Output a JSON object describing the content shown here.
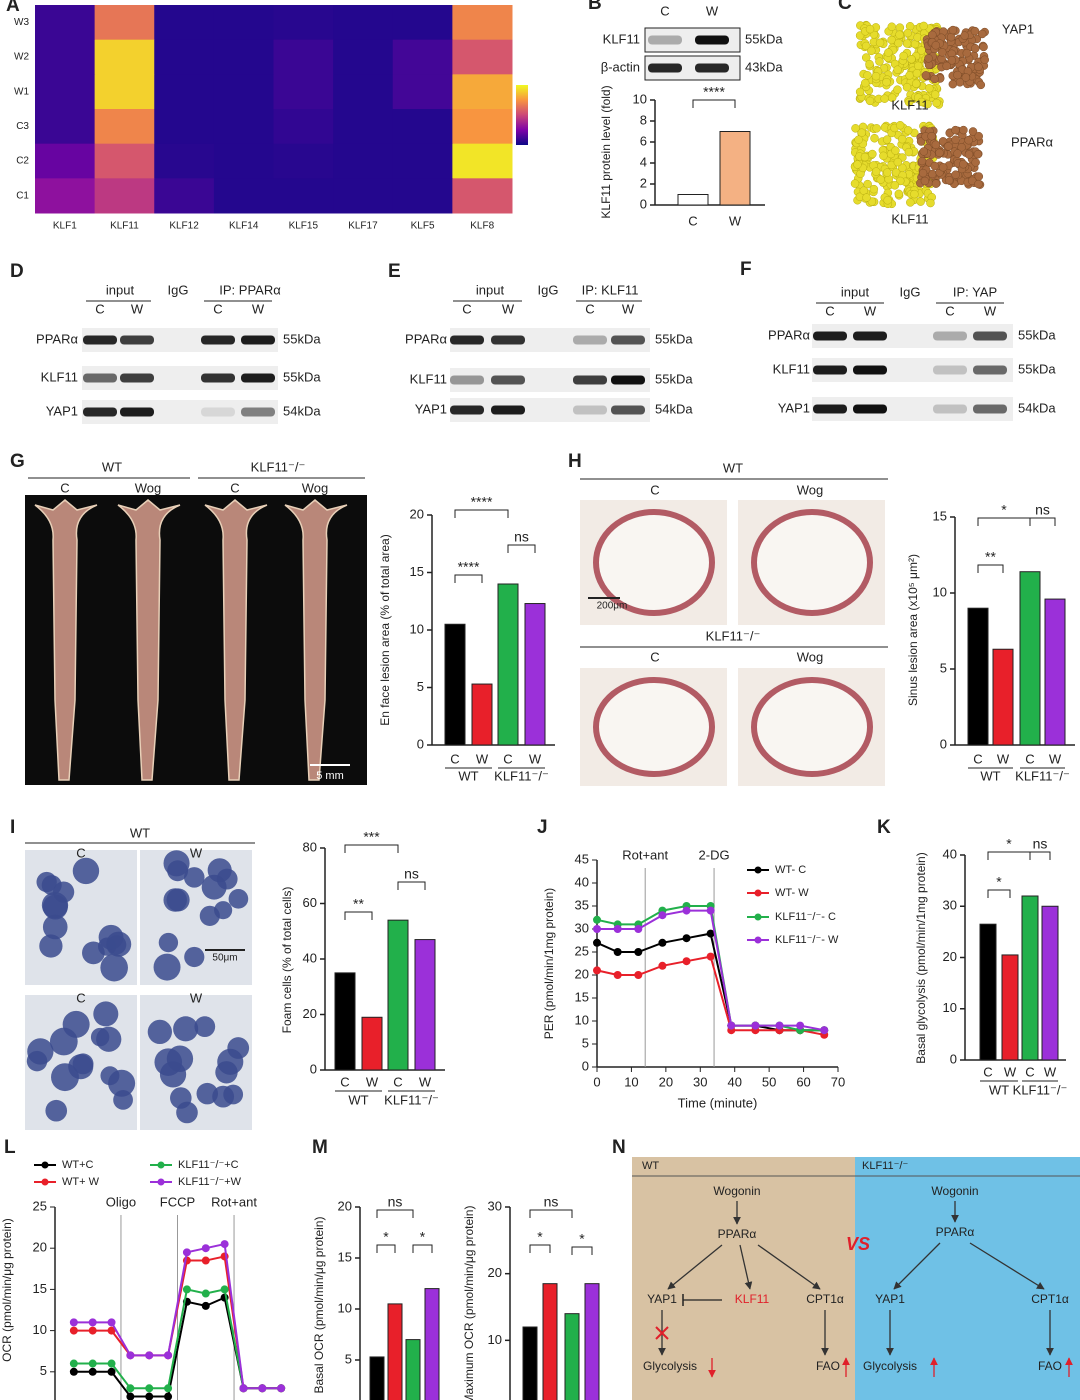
{
  "panel_labels": [
    "A",
    "B",
    "C",
    "D",
    "E",
    "F",
    "G",
    "H",
    "I",
    "J",
    "K",
    "L",
    "M",
    "N"
  ],
  "chart_data": [
    {
      "type": "heatmap",
      "rows": [
        "W3",
        "W2",
        "W1",
        "C3",
        "C2",
        "C1"
      ],
      "columns": [
        "KLF1",
        "KLF11",
        "KLF12",
        "KLF14",
        "KLF15",
        "KLF17",
        "KLF5",
        "KLF8"
      ],
      "values": [
        [
          0.1,
          0.65,
          0.05,
          0.05,
          0.06,
          0.05,
          0.05,
          0.7
        ],
        [
          0.1,
          0.9,
          0.05,
          0.05,
          0.1,
          0.05,
          0.12,
          0.55
        ],
        [
          0.1,
          0.9,
          0.05,
          0.05,
          0.1,
          0.05,
          0.12,
          0.8
        ],
        [
          0.1,
          0.7,
          0.05,
          0.05,
          0.08,
          0.05,
          0.05,
          0.75
        ],
        [
          0.2,
          0.55,
          0.06,
          0.05,
          0.06,
          0.05,
          0.05,
          0.95
        ],
        [
          0.3,
          0.45,
          0.1,
          0.05,
          0.05,
          0.05,
          0.05,
          0.55
        ]
      ],
      "zlim": [
        0,
        1
      ],
      "colorscale": [
        "#0d0887",
        "#7e03a8",
        "#cc4778",
        "#f89540",
        "#f0f921"
      ]
    },
    {
      "type": "bar",
      "categories": [
        "C",
        "W"
      ],
      "values": [
        1,
        7
      ],
      "colors": [
        "#ffffff",
        "#f4b183"
      ],
      "ylim": [
        0,
        10
      ],
      "yticks": [
        0,
        2,
        4,
        6,
        8,
        10
      ],
      "ylabel": "KLF11 protein level (fold)",
      "significance": [
        "****"
      ]
    },
    {
      "type": "bar",
      "categories": [
        "C",
        "W",
        "C",
        "W"
      ],
      "groups": [
        "WT",
        "KLF11⁻/⁻"
      ],
      "values": [
        10.5,
        5.3,
        14,
        12.3
      ],
      "colors": [
        "#000000",
        "#e8202a",
        "#22b04b",
        "#9b30d9"
      ],
      "ylim": [
        0,
        20
      ],
      "yticks": [
        0,
        5,
        10,
        15,
        20
      ],
      "ylabel": "En face lesion area (% of total area)",
      "significance": [
        "****",
        "****",
        "ns"
      ]
    },
    {
      "type": "bar",
      "categories": [
        "C",
        "W",
        "C",
        "W"
      ],
      "groups": [
        "WT",
        "KLF11⁻/⁻"
      ],
      "values": [
        9,
        6.3,
        11.4,
        9.6
      ],
      "colors": [
        "#000000",
        "#e8202a",
        "#22b04b",
        "#9b30d9"
      ],
      "ylim": [
        0,
        15
      ],
      "yticks": [
        0,
        5,
        10,
        15
      ],
      "ylabel": "Sinus lesion area (x10⁵ μm²)",
      "significance": [
        "**",
        "*",
        "ns"
      ]
    },
    {
      "type": "bar",
      "categories": [
        "C",
        "W",
        "C",
        "W"
      ],
      "groups": [
        "WT",
        "KLF11⁻/⁻"
      ],
      "values": [
        35,
        19,
        54,
        47
      ],
      "colors": [
        "#000000",
        "#e8202a",
        "#22b04b",
        "#9b30d9"
      ],
      "ylim": [
        0,
        80
      ],
      "yticks": [
        0,
        20,
        40,
        60,
        80
      ],
      "ylabel": "Foam cells (% of total cells)",
      "significance": [
        "**",
        "***",
        "ns"
      ]
    },
    {
      "type": "line",
      "x": [
        0,
        6,
        12,
        19,
        26,
        33,
        39,
        46,
        53,
        59,
        66
      ],
      "xlim": [
        0,
        70
      ],
      "xticks": [
        0,
        10,
        20,
        30,
        40,
        50,
        60,
        70
      ],
      "ylim": [
        0,
        45
      ],
      "yticks": [
        0,
        5,
        10,
        15,
        20,
        25,
        30,
        35,
        40,
        45
      ],
      "xlabel": "Time (minute)",
      "ylabel": "PER (pmol/min/1mg protein)",
      "annotations": [
        {
          "text": "Rot+ant",
          "x": 14
        },
        {
          "text": "2-DG",
          "x": 34
        }
      ],
      "series": [
        {
          "name": "WT- C",
          "color": "#000000",
          "values": [
            27,
            25,
            25,
            27,
            28,
            29,
            9,
            9,
            8,
            8,
            8
          ]
        },
        {
          "name": "WT- W",
          "color": "#e8202a",
          "values": [
            21,
            20,
            20,
            22,
            23,
            24,
            8,
            8,
            8,
            8,
            7
          ]
        },
        {
          "name": "KLF11⁻/⁻- C",
          "color": "#22b04b",
          "values": [
            32,
            31,
            31,
            34,
            35,
            35,
            9,
            9,
            9,
            8,
            8
          ]
        },
        {
          "name": "KLF11⁻/⁻- W",
          "color": "#9b30d9",
          "values": [
            30,
            30,
            30,
            33,
            34,
            34,
            9,
            9,
            9,
            9,
            8
          ]
        }
      ]
    },
    {
      "type": "bar",
      "categories": [
        "C",
        "W",
        "C",
        "W"
      ],
      "groups": [
        "WT",
        "KLF11⁻/⁻"
      ],
      "values": [
        26.5,
        20.5,
        32,
        30
      ],
      "colors": [
        "#000000",
        "#e8202a",
        "#22b04b",
        "#9b30d9"
      ],
      "ylim": [
        0,
        40
      ],
      "yticks": [
        0,
        10,
        20,
        30,
        40
      ],
      "ylabel": "Basal glycolysis (pmol/min/1mg protein)",
      "significance": [
        "*",
        "*",
        "ns"
      ]
    },
    {
      "type": "line",
      "x": [
        1,
        2,
        3,
        4,
        5,
        6,
        7,
        8,
        9,
        10,
        11,
        12
      ],
      "xlim": [
        0,
        13
      ],
      "ylim": [
        0,
        25
      ],
      "yticks": [
        5,
        10,
        15,
        20,
        25
      ],
      "ylabel": "OCR (pmol/min/μg protein)",
      "annotations": [
        {
          "text": "Oligo",
          "x": 3.5
        },
        {
          "text": "FCCP",
          "x": 6.5
        },
        {
          "text": "Rot+ant",
          "x": 9.5
        }
      ],
      "series": [
        {
          "name": "WT+C",
          "color": "#000000",
          "values": [
            5,
            5,
            5,
            2,
            2,
            2,
            13.5,
            13,
            14,
            3,
            3,
            3
          ]
        },
        {
          "name": "WT+ W",
          "color": "#e8202a",
          "values": [
            10,
            10,
            10,
            7,
            7,
            7,
            18.5,
            18.5,
            19,
            3,
            3,
            3
          ]
        },
        {
          "name": "KLF11⁻/⁻+C",
          "color": "#22b04b",
          "values": [
            6,
            6,
            6,
            3,
            3,
            3,
            15,
            14.5,
            15,
            3,
            3,
            3
          ]
        },
        {
          "name": "KLF11⁻/⁻+W",
          "color": "#9b30d9",
          "values": [
            11,
            11,
            11,
            7,
            7,
            7,
            19.5,
            20,
            20.5,
            3,
            3,
            3
          ]
        }
      ]
    },
    {
      "type": "bar",
      "categories": [
        null,
        null,
        null,
        null
      ],
      "values": [
        5.3,
        10.5,
        7,
        12
      ],
      "colors": [
        "#000000",
        "#e8202a",
        "#22b04b",
        "#9b30d9"
      ],
      "ylim": [
        0,
        20
      ],
      "yticks": [
        5,
        10,
        15,
        20
      ],
      "ylabel": "Basal OCR (pmol/min/μg protein)",
      "significance": [
        "ns",
        "*",
        "*"
      ]
    },
    {
      "type": "bar",
      "categories": [
        null,
        null,
        null,
        null
      ],
      "values": [
        12,
        18.5,
        14,
        18.5
      ],
      "colors": [
        "#000000",
        "#e8202a",
        "#22b04b",
        "#9b30d9"
      ],
      "ylim": [
        0,
        30
      ],
      "yticks": [
        10,
        20,
        30
      ],
      "ylabel": "Maximum OCR (pmol/min/μg protein)",
      "significance": [
        "ns",
        "*",
        "*"
      ]
    }
  ],
  "blots": {
    "B": {
      "lanes": [
        "C",
        "W"
      ],
      "rows": [
        {
          "protein": "KLF11",
          "size": "55kDa"
        },
        {
          "protein": "β-actin",
          "size": "43kDa"
        }
      ]
    },
    "D": {
      "headers": [
        "input",
        "IgG",
        "IP: PPARα"
      ],
      "lanes": [
        "C",
        "W",
        "C",
        "W"
      ],
      "rows": [
        {
          "protein": "PPARα",
          "size": "55kDa"
        },
        {
          "protein": "KLF11",
          "size": "55kDa"
        },
        {
          "protein": "YAP1",
          "size": "54kDa"
        }
      ]
    },
    "E": {
      "headers": [
        "input",
        "IgG",
        "IP: KLF11"
      ],
      "lanes": [
        "C",
        "W",
        "C",
        "W"
      ],
      "rows": [
        {
          "protein": "PPARα",
          "size": "55kDa"
        },
        {
          "protein": "KLF11",
          "size": "55kDa"
        },
        {
          "protein": "YAP1",
          "size": "54kDa"
        }
      ]
    },
    "F": {
      "headers": [
        "input",
        "IgG",
        "IP: YAP"
      ],
      "lanes": [
        "C",
        "W",
        "C",
        "W"
      ],
      "rows": [
        {
          "protein": "PPARα",
          "size": "55kDa"
        },
        {
          "protein": "KLF11",
          "size": "55kDa"
        },
        {
          "protein": "YAP1",
          "size": "54kDa"
        }
      ]
    }
  },
  "structures": {
    "labels": [
      "YAP1",
      "KLF11",
      "PPARα",
      "KLF11"
    ]
  },
  "images": {
    "G": {
      "groups": [
        "WT",
        "KLF11⁻/⁻"
      ],
      "lanes": [
        "C",
        "Wog",
        "C",
        "Wog"
      ],
      "scale": "5 mm"
    },
    "H": {
      "rows": [
        "WT",
        "KLF11⁻/⁻"
      ],
      "lanes": [
        "C",
        "Wog",
        "C",
        "Wog"
      ],
      "scale": "200μm"
    },
    "I": {
      "title": "WT",
      "lanes": [
        "C",
        "W",
        "C",
        "W"
      ],
      "scale": "50μm"
    }
  },
  "diagram": {
    "left": {
      "title": "WT",
      "nodes": [
        "Wogonin",
        "PPARα",
        "YAP1",
        "KLF11",
        "CPT1α",
        "Glycolysis",
        "FAO"
      ]
    },
    "vs": "VS",
    "right": {
      "title": "KLF11⁻/⁻",
      "nodes": [
        "Wogonin",
        "PPARα",
        "YAP1",
        "CPT1α",
        "Glycolysis",
        "FAO"
      ]
    }
  }
}
